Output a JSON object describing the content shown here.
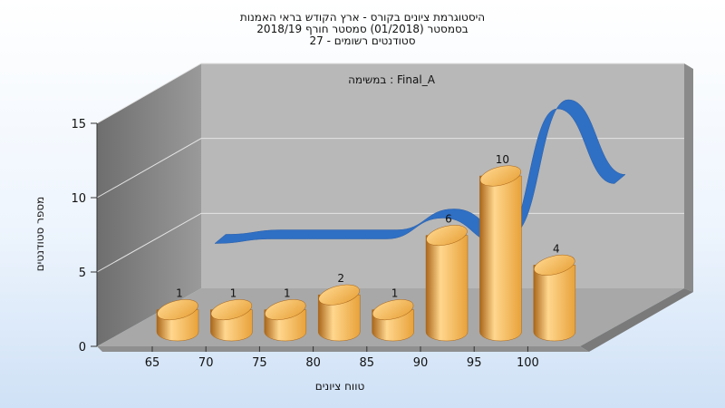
{
  "chart_data": {
    "type": "bar",
    "title_lines": [
      "היסטוגרמת ציונים בקורס - ארץ הקודש בראי האמנות",
      "בסמסטר  (01/2018)  סמסטר חורף 2018/19",
      "סטודנטים רשומים - 27"
    ],
    "subtitle": "במשימה : Final_A",
    "xlabel": "טווח ציונים",
    "ylabel": "מספר סטודנטים",
    "ylim": [
      0,
      15
    ],
    "yticks": [
      "0",
      "5",
      "10",
      "15"
    ],
    "categories": [
      "65",
      "70",
      "75",
      "80",
      "85",
      "90",
      "95",
      "100"
    ],
    "values": [
      1,
      1,
      1,
      2,
      1,
      6,
      10,
      4
    ],
    "trend_values": [
      3,
      3.3,
      3.3,
      3.3,
      4.7,
      3,
      12,
      7
    ],
    "grid": true,
    "colors": {
      "bar": "#e8a23a",
      "bar_dark": "#a9661a",
      "bar_light": "#ffd78e",
      "trend": "#2f6fc4",
      "back_wall": "#b8b8b8",
      "side_wall": "#7e7e7e",
      "floor": "#a8a8a8"
    }
  }
}
